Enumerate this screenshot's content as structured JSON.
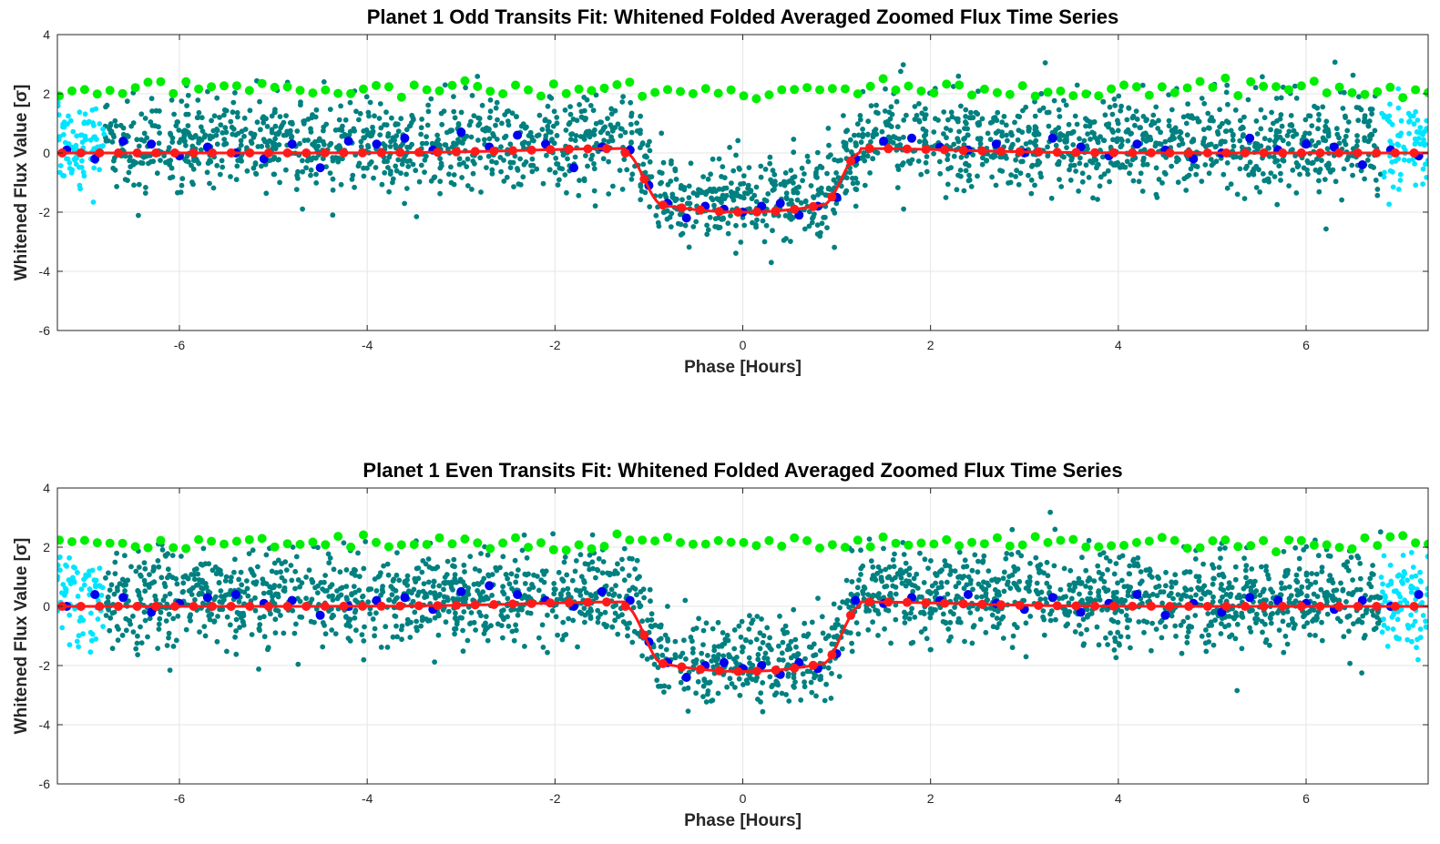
{
  "colors": {
    "odd_even_data": "#008080",
    "out_of_window_data": "#00e5ff",
    "binned_data": "#0000ee",
    "model_fit": "#ff1a1a",
    "reference_markers": "#00ee00",
    "axes": "#262626",
    "grid": "#e6e6e6"
  },
  "chart_data": [
    {
      "type": "scatter",
      "title": "Planet 1 Odd Transits Fit: Whitened Folded Averaged Zoomed Flux Time Series",
      "xlabel": "Phase [Hours]",
      "ylabel": "Whitened Flux Value [σ]",
      "xlim": [
        -7.3,
        7.3
      ],
      "ylim": [
        -6,
        4
      ],
      "xticks": [
        -6,
        -4,
        -2,
        0,
        2,
        4,
        6
      ],
      "yticks": [
        -6,
        -4,
        -2,
        0,
        2,
        4
      ],
      "xtick_labels": [
        "-6",
        "-4",
        "-2",
        "0",
        "2",
        "4",
        "6"
      ],
      "ytick_labels": [
        "-6",
        "-4",
        "-2",
        "0",
        "2",
        "4"
      ],
      "grid": true,
      "transit": {
        "ingress_start": -1.25,
        "full_start": -0.85,
        "full_end": 0.85,
        "egress_end": 1.25,
        "depth": -2.0,
        "baseline": 0.0
      },
      "series": [
        {
          "kind": "whitened_flux_points",
          "color_key": "odd_even_data",
          "approx_count": 2400,
          "sigma": 0.8
        },
        {
          "kind": "edge_points",
          "color_key": "out_of_window_data",
          "ranges": [
            [
              -7.3,
              -6.8
            ],
            [
              6.8,
              7.3
            ]
          ]
        },
        {
          "kind": "binned_averages",
          "color_key": "binned_data",
          "x": [
            -7.2,
            -6.9,
            -6.6,
            -6.3,
            -6.0,
            -5.7,
            -5.4,
            -5.1,
            -4.8,
            -4.5,
            -4.2,
            -3.9,
            -3.6,
            -3.3,
            -3.0,
            -2.7,
            -2.4,
            -2.1,
            -1.8,
            -1.5,
            -1.2,
            -1.0,
            -0.8,
            -0.6,
            -0.4,
            -0.2,
            0.0,
            0.2,
            0.4,
            0.6,
            0.8,
            1.0,
            1.2,
            1.5,
            1.8,
            2.1,
            2.4,
            2.7,
            3.0,
            3.3,
            3.6,
            3.9,
            4.2,
            4.5,
            4.8,
            5.1,
            5.4,
            5.7,
            6.0,
            6.3,
            6.6,
            6.9,
            7.2
          ],
          "y": [
            0.1,
            -0.2,
            0.4,
            0.3,
            -0.1,
            0.2,
            0.0,
            -0.2,
            0.3,
            -0.5,
            0.4,
            0.3,
            0.5,
            0.1,
            0.7,
            0.2,
            0.6,
            0.3,
            -0.5,
            0.2,
            0.1,
            -1.1,
            -1.7,
            -2.2,
            -1.8,
            -1.9,
            -2.0,
            -1.8,
            -1.7,
            -2.1,
            -1.8,
            -1.5,
            -0.2,
            0.4,
            0.5,
            0.2,
            0.1,
            0.3,
            0.0,
            0.5,
            0.2,
            -0.1,
            0.3,
            0.1,
            -0.2,
            0.0,
            0.5,
            0.1,
            0.3,
            0.2,
            -0.4,
            0.1,
            -0.1
          ]
        },
        {
          "kind": "model_fit",
          "color_key": "model_fit",
          "bin_width": 0.2
        },
        {
          "kind": "reference_markers",
          "color_key": "reference_markers",
          "level": 2.2
        }
      ]
    },
    {
      "type": "scatter",
      "title": "Planet 1 Even Transits Fit: Whitened Folded Averaged Zoomed Flux Time Series",
      "xlabel": "Phase [Hours]",
      "ylabel": "Whitened Flux Value [σ]",
      "xlim": [
        -7.3,
        7.3
      ],
      "ylim": [
        -6,
        4
      ],
      "xticks": [
        -6,
        -4,
        -2,
        0,
        2,
        4,
        6
      ],
      "yticks": [
        -6,
        -4,
        -2,
        0,
        2,
        4
      ],
      "xtick_labels": [
        "-6",
        "-4",
        "-2",
        "0",
        "2",
        "4",
        "6"
      ],
      "ytick_labels": [
        "-6",
        "-4",
        "-2",
        "0",
        "2",
        "4"
      ],
      "grid": true,
      "transit": {
        "ingress_start": -1.25,
        "full_start": -0.85,
        "full_end": 0.85,
        "egress_end": 1.25,
        "depth": -2.2,
        "baseline": 0.0
      },
      "series": [
        {
          "kind": "whitened_flux_points",
          "color_key": "odd_even_data",
          "approx_count": 2400,
          "sigma": 0.8
        },
        {
          "kind": "edge_points",
          "color_key": "out_of_window_data",
          "ranges": [
            [
              -7.3,
              -6.8
            ],
            [
              6.8,
              7.3
            ]
          ]
        },
        {
          "kind": "binned_averages",
          "color_key": "binned_data",
          "x": [
            -7.2,
            -6.9,
            -6.6,
            -6.3,
            -6.0,
            -5.7,
            -5.4,
            -5.1,
            -4.8,
            -4.5,
            -4.2,
            -3.9,
            -3.6,
            -3.3,
            -3.0,
            -2.7,
            -2.4,
            -2.1,
            -1.8,
            -1.5,
            -1.2,
            -1.0,
            -0.8,
            -0.6,
            -0.4,
            -0.2,
            0.0,
            0.2,
            0.4,
            0.6,
            0.8,
            1.0,
            1.2,
            1.5,
            1.8,
            2.1,
            2.4,
            2.7,
            3.0,
            3.3,
            3.6,
            3.9,
            4.2,
            4.5,
            4.8,
            5.1,
            5.4,
            5.7,
            6.0,
            6.3,
            6.6,
            6.9,
            7.2
          ],
          "y": [
            0.0,
            0.4,
            0.3,
            -0.2,
            0.1,
            0.3,
            0.4,
            0.1,
            0.2,
            -0.3,
            0.0,
            0.2,
            0.3,
            -0.1,
            0.5,
            0.7,
            0.4,
            0.2,
            0.0,
            0.5,
            0.2,
            -1.2,
            -1.9,
            -2.4,
            -2.0,
            -1.9,
            -2.1,
            -2.0,
            -2.3,
            -1.9,
            -2.1,
            -1.6,
            0.2,
            0.1,
            0.3,
            0.2,
            0.4,
            0.1,
            -0.1,
            0.3,
            -0.2,
            0.1,
            0.4,
            -0.3,
            0.1,
            -0.2,
            0.3,
            0.2,
            0.1,
            -0.1,
            0.2,
            0.0,
            0.4
          ]
        },
        {
          "kind": "model_fit",
          "color_key": "model_fit",
          "bin_width": 0.2
        },
        {
          "kind": "reference_markers",
          "color_key": "reference_markers",
          "level": 2.2
        }
      ]
    }
  ]
}
